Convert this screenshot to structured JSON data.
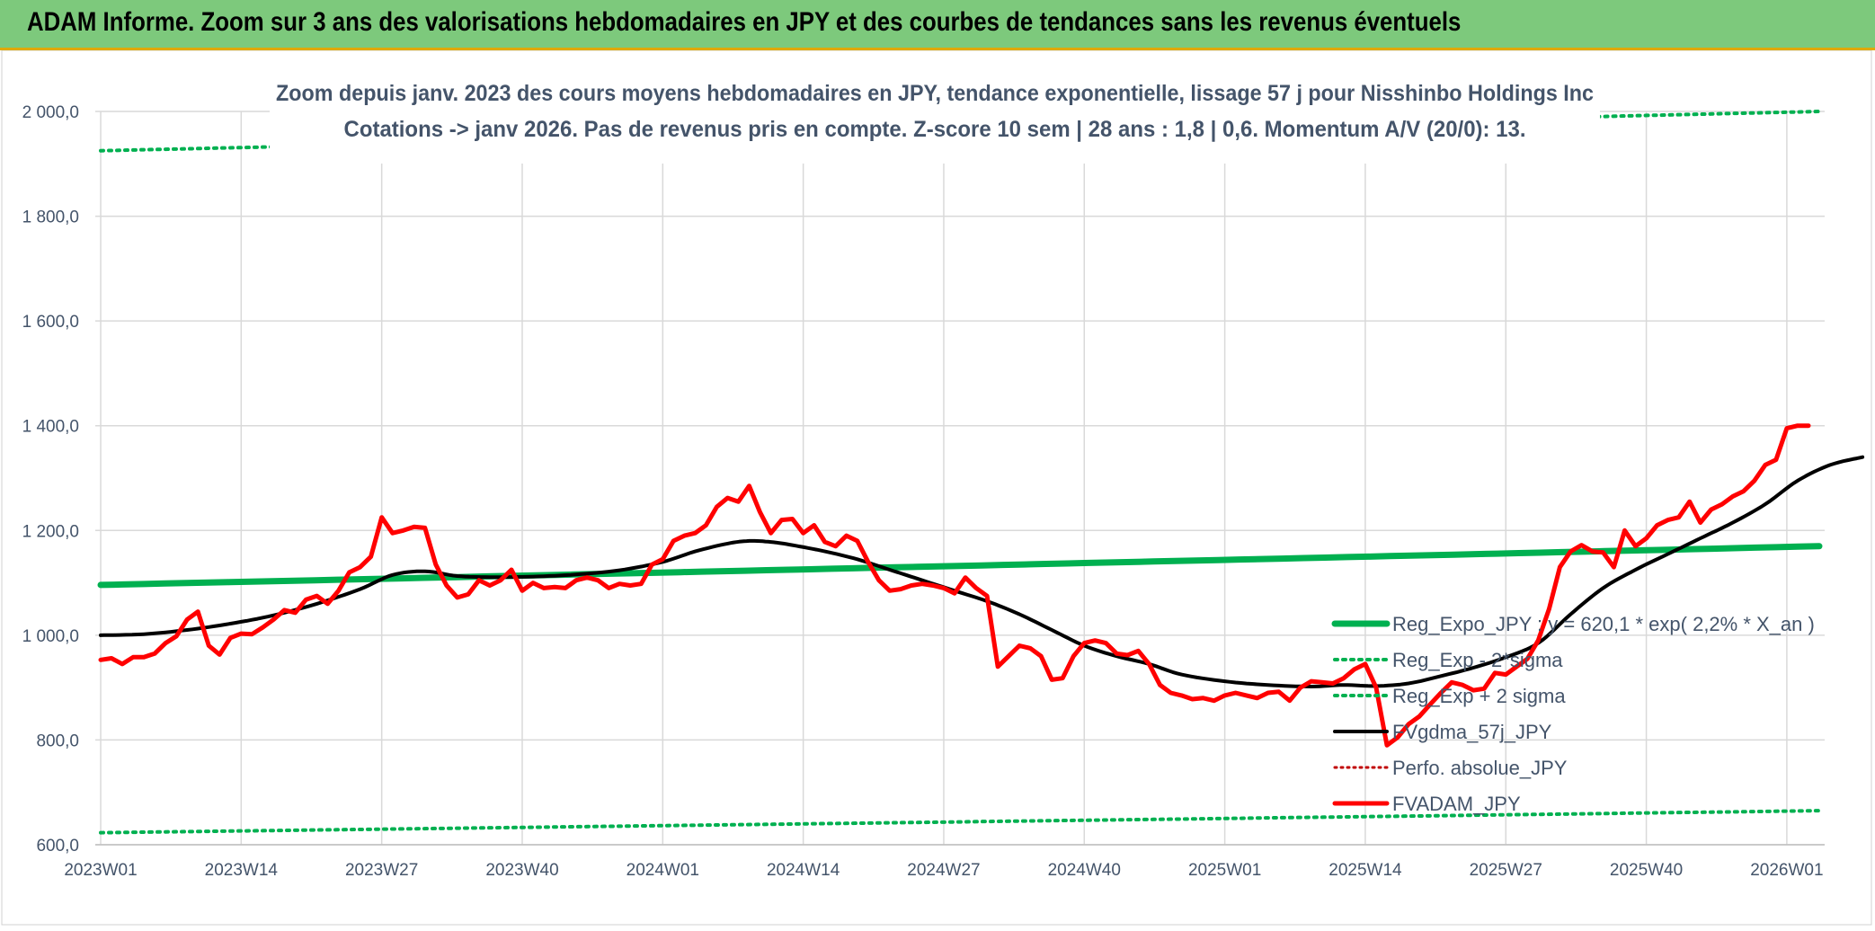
{
  "header": {
    "title": "ADAM Informe. Zoom sur 3 ans des valorisations hebdomadaires en JPY et des courbes de tendances sans les revenus éventuels"
  },
  "colors": {
    "banner": "#7dc97c",
    "reg_expo": "#00b050",
    "fvgdma": "#000000",
    "fvadam": "#ff0000",
    "perfo": "#c00000",
    "grid": "#d9d9d9",
    "text": "#44546a"
  },
  "chart_data": {
    "type": "line",
    "title": "Zoom depuis janv. 2023 des cours moyens hebdomadaires en JPY, tendance exponentielle, lissage 57 j pour Nisshinbo Holdings Inc",
    "subtitle": "Cotations -> janv 2026. Pas de revenus pris en compte. Z-score 10 sem | 28 ans : 1,8 | 0,6. Momentum A/V (20/0): 13.",
    "xlabel": "",
    "ylabel": "",
    "ylim": [
      600,
      2000
    ],
    "x_count": 160,
    "x_tick_labels": [
      "2023W01",
      "2023W14",
      "2023W27",
      "2023W40",
      "2024W01",
      "2024W14",
      "2024W27",
      "2024W40",
      "2025W01",
      "2025W14",
      "2025W27",
      "2025W40",
      "2026W01"
    ],
    "x_tick_indices": [
      0,
      13,
      26,
      39,
      52,
      65,
      78,
      91,
      104,
      117,
      130,
      143,
      156
    ],
    "y_ticks": [
      600,
      800,
      1000,
      1200,
      1400,
      1600,
      1800,
      2000
    ],
    "y_tick_labels": [
      "600,0",
      "800,0",
      "1 000,0",
      "1 200,0",
      "1 400,0",
      "1 600,0",
      "1 800,0",
      "2 000,0"
    ],
    "legend_position": "bottom-right",
    "legend": [
      "Reg_Expo_JPY : y = 620,1 * exp( 2,2% *  X_an )",
      "Reg_Exp - 2*sigma",
      "Reg_Exp + 2 sigma",
      "FVgdma_57j_JPY",
      "Perfo. absolue_JPY",
      "FVADAM_JPY"
    ],
    "series": [
      {
        "name": "Reg_Expo_JPY : y = 620,1 * exp( 2,2% *  X_an )",
        "style": "solid-thick",
        "anchors": [
          [
            0,
            1096
          ],
          [
            159,
            1170
          ]
        ]
      },
      {
        "name": "Reg_Exp - 2*sigma",
        "style": "dotted",
        "anchors": [
          [
            0,
            623
          ],
          [
            159,
            665
          ]
        ]
      },
      {
        "name": "Reg_Exp + 2 sigma",
        "style": "dotted",
        "anchors": [
          [
            0,
            1925
          ],
          [
            159,
            2000
          ]
        ]
      },
      {
        "name": "FVgdma_57j_JPY",
        "style": "solid",
        "anchors": [
          [
            0,
            1000
          ],
          [
            4,
            1002
          ],
          [
            8,
            1010
          ],
          [
            12,
            1022
          ],
          [
            16,
            1038
          ],
          [
            20,
            1060
          ],
          [
            24,
            1088
          ],
          [
            27,
            1115
          ],
          [
            30,
            1122
          ],
          [
            33,
            1113
          ],
          [
            36,
            1111
          ],
          [
            40,
            1112
          ],
          [
            44,
            1116
          ],
          [
            48,
            1124
          ],
          [
            52,
            1140
          ],
          [
            55,
            1160
          ],
          [
            58,
            1175
          ],
          [
            60,
            1180
          ],
          [
            62,
            1178
          ],
          [
            64,
            1172
          ],
          [
            67,
            1160
          ],
          [
            70,
            1145
          ],
          [
            73,
            1125
          ],
          [
            76,
            1105
          ],
          [
            79,
            1085
          ],
          [
            82,
            1065
          ],
          [
            85,
            1040
          ],
          [
            88,
            1010
          ],
          [
            91,
            980
          ],
          [
            94,
            960
          ],
          [
            97,
            945
          ],
          [
            100,
            925
          ],
          [
            104,
            912
          ],
          [
            108,
            905
          ],
          [
            112,
            902
          ],
          [
            115,
            905
          ],
          [
            118,
            903
          ],
          [
            121,
            908
          ],
          [
            124,
            922
          ],
          [
            127,
            938
          ],
          [
            130,
            958
          ],
          [
            133,
            985
          ],
          [
            136,
            1040
          ],
          [
            139,
            1090
          ],
          [
            142,
            1125
          ],
          [
            145,
            1155
          ],
          [
            148,
            1185
          ],
          [
            151,
            1215
          ],
          [
            154,
            1250
          ],
          [
            157,
            1295
          ],
          [
            160,
            1325
          ],
          [
            163,
            1340
          ]
        ]
      },
      {
        "name": "FVADAM_JPY",
        "style": "solid-thick",
        "values": [
          953,
          956,
          945,
          958,
          958,
          965,
          985,
          998,
          1030,
          1045,
          980,
          963,
          995,
          1003,
          1002,
          1015,
          1030,
          1048,
          1043,
          1068,
          1075,
          1060,
          1085,
          1120,
          1130,
          1150,
          1225,
          1195,
          1200,
          1207,
          1205,
          1135,
          1095,
          1072,
          1078,
          1105,
          1095,
          1105,
          1125,
          1085,
          1100,
          1090,
          1092,
          1090,
          1105,
          1110,
          1105,
          1090,
          1098,
          1095,
          1098,
          1135,
          1145,
          1180,
          1190,
          1195,
          1210,
          1245,
          1262,
          1255,
          1285,
          1235,
          1195,
          1220,
          1222,
          1195,
          1210,
          1178,
          1170,
          1190,
          1180,
          1140,
          1105,
          1085,
          1088,
          1095,
          1098,
          1095,
          1090,
          1080,
          1110,
          1090,
          1075,
          940,
          960,
          980,
          975,
          960,
          915,
          918,
          960,
          985,
          990,
          985,
          965,
          962,
          970,
          945,
          905,
          890,
          885,
          878,
          880,
          875,
          885,
          890,
          885,
          880,
          890,
          892,
          875,
          900,
          912,
          910,
          908,
          918,
          935,
          945,
          900,
          790,
          805,
          830,
          845,
          868,
          890,
          910,
          905,
          895,
          898,
          928,
          925,
          940,
          955,
          990,
          1050,
          1130,
          1160,
          1172,
          1160,
          1158,
          1130,
          1200,
          1170,
          1185,
          1210,
          1220,
          1225,
          1255,
          1215,
          1240,
          1250,
          1265,
          1275,
          1295,
          1325,
          1335,
          1395,
          1400,
          1400
        ]
      }
    ]
  }
}
